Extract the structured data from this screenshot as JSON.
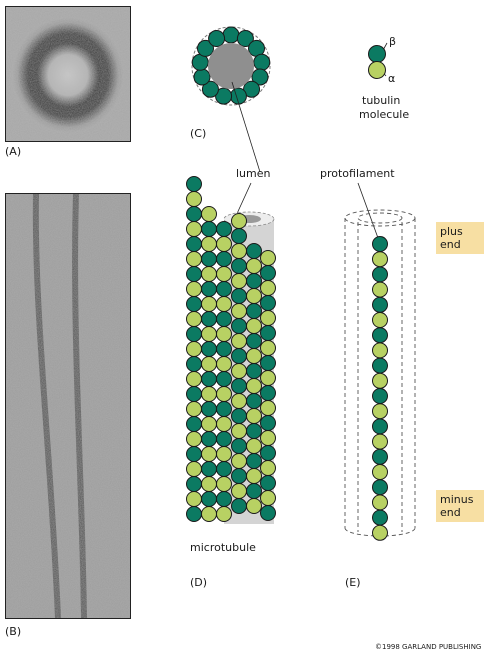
{
  "panels": {
    "A": "(A)",
    "B": "(B)",
    "C": "(C)",
    "D": "(D)",
    "E": "(E)"
  },
  "labels": {
    "beta": "β",
    "alpha": "α",
    "tubulin": "tubulin",
    "molecule": "molecule",
    "lumen": "lumen",
    "protofilament": "protofilament",
    "microtubule": "microtubule",
    "plus_end": "plus\nend",
    "minus_end": "minus\nend",
    "copyright": "©1998 GARLAND PUBLISHING"
  },
  "colors": {
    "beta_tubulin": "#0b7a62",
    "alpha_tubulin": "#b8d163",
    "lumen": "#8f8f8f",
    "end_box": "#f7dfa3"
  }
}
